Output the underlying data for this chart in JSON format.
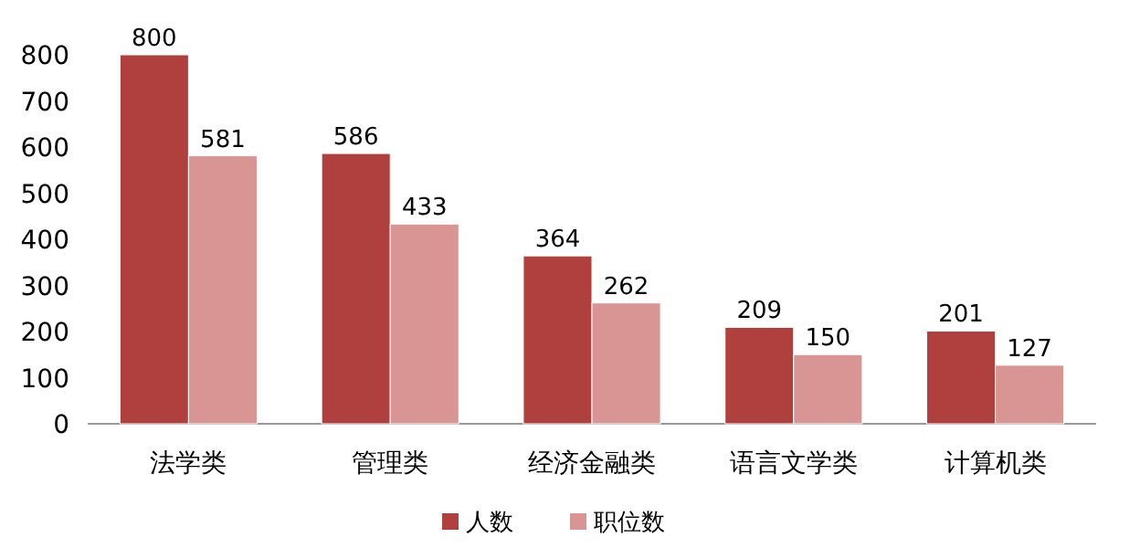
{
  "chart_data": {
    "type": "bar",
    "categories": [
      "法学类",
      "管理类",
      "经济金融类",
      "语言文学类",
      "计算机类"
    ],
    "series": [
      {
        "name": "人数",
        "color": "#b0403e",
        "values": [
          800,
          586,
          364,
          209,
          201
        ]
      },
      {
        "name": "职位数",
        "color": "#d99594",
        "values": [
          581,
          433,
          262,
          150,
          127
        ]
      }
    ],
    "ylim": [
      0,
      800
    ],
    "yticks": [
      0,
      100,
      200,
      300,
      400,
      500,
      600,
      700,
      800
    ],
    "data_labels": true,
    "legend": "bottom",
    "grid": false
  }
}
